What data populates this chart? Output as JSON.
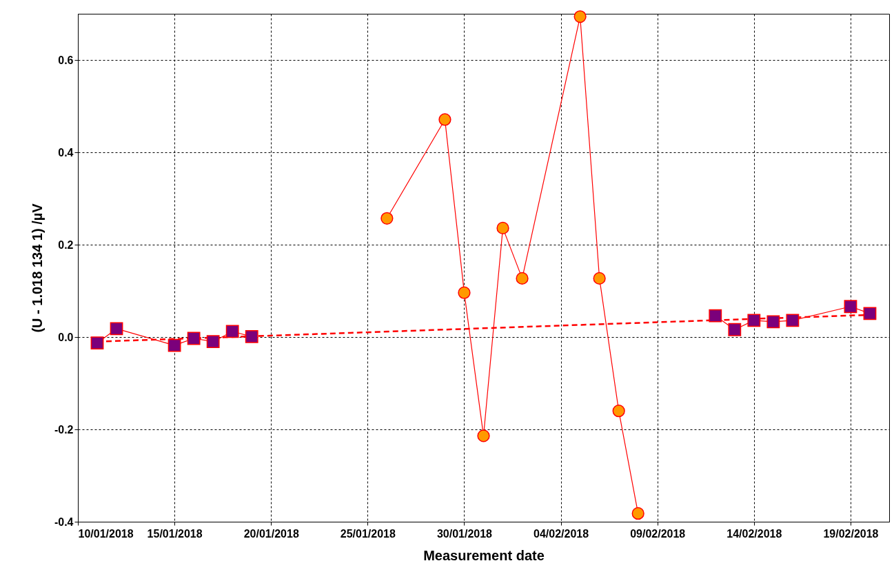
{
  "chart_data": {
    "type": "line",
    "xlabel": "Measurement date",
    "ylabel": "(U - 1.018 134 1) /µV",
    "xlim": [
      "2018-01-10",
      "2018-02-21"
    ],
    "xticks": [
      {
        "value": "2018-01-10",
        "label": "10/01/2018"
      },
      {
        "value": "2018-01-15",
        "label": "15/01/2018"
      },
      {
        "value": "2018-01-20",
        "label": "20/01/2018"
      },
      {
        "value": "2018-01-25",
        "label": "25/01/2018"
      },
      {
        "value": "2018-01-30",
        "label": "30/01/2018"
      },
      {
        "value": "2018-02-04",
        "label": "04/02/2018"
      },
      {
        "value": "2018-02-09",
        "label": "09/02/2018"
      },
      {
        "value": "2018-02-14",
        "label": "14/02/2018"
      },
      {
        "value": "2018-02-19",
        "label": "19/02/2018"
      }
    ],
    "ylim": [
      -0.4,
      0.7
    ],
    "yticks": [
      -0.4,
      -0.2,
      {
        "value": 0,
        "label": "0.0"
      },
      0.2,
      0.4,
      0.6
    ],
    "grid": true,
    "series": [
      {
        "color": "#ff0000",
        "marker": "none",
        "line_style": "dashed",
        "x": [
          "2018-01-11",
          "2018-02-20"
        ],
        "values": [
          -0.01,
          0.048
        ]
      },
      {
        "color": "#7b007b",
        "marker": "square",
        "line_style": "solid",
        "x": [
          "2018-01-11",
          "2018-01-12",
          "2018-01-15",
          "2018-01-16",
          "2018-01-17",
          "2018-01-18",
          "2018-01-19"
        ],
        "values": [
          -0.013,
          0.018,
          -0.018,
          -0.003,
          -0.01,
          0.012,
          0.001
        ]
      },
      {
        "color": "#7b007b",
        "marker": "square",
        "line_style": "solid",
        "x": [
          "2018-02-12",
          "2018-02-13",
          "2018-02-14",
          "2018-02-15",
          "2018-02-16",
          "2018-02-19",
          "2018-02-20"
        ],
        "values": [
          0.046,
          0.016,
          0.036,
          0.033,
          0.036,
          0.066,
          0.051
        ]
      },
      {
        "color": "#ff9900",
        "marker": "circle",
        "line_style": "solid",
        "x": [
          "2018-01-26",
          "2018-01-29",
          "2018-01-30",
          "2018-01-31",
          "2018-02-01",
          "2018-02-02",
          "2018-02-05",
          "2018-02-06",
          "2018-02-07",
          "2018-02-08"
        ],
        "values": [
          0.257,
          0.471,
          0.096,
          -0.214,
          0.236,
          0.127,
          0.694,
          0.127,
          -0.16,
          -0.382
        ]
      }
    ]
  }
}
